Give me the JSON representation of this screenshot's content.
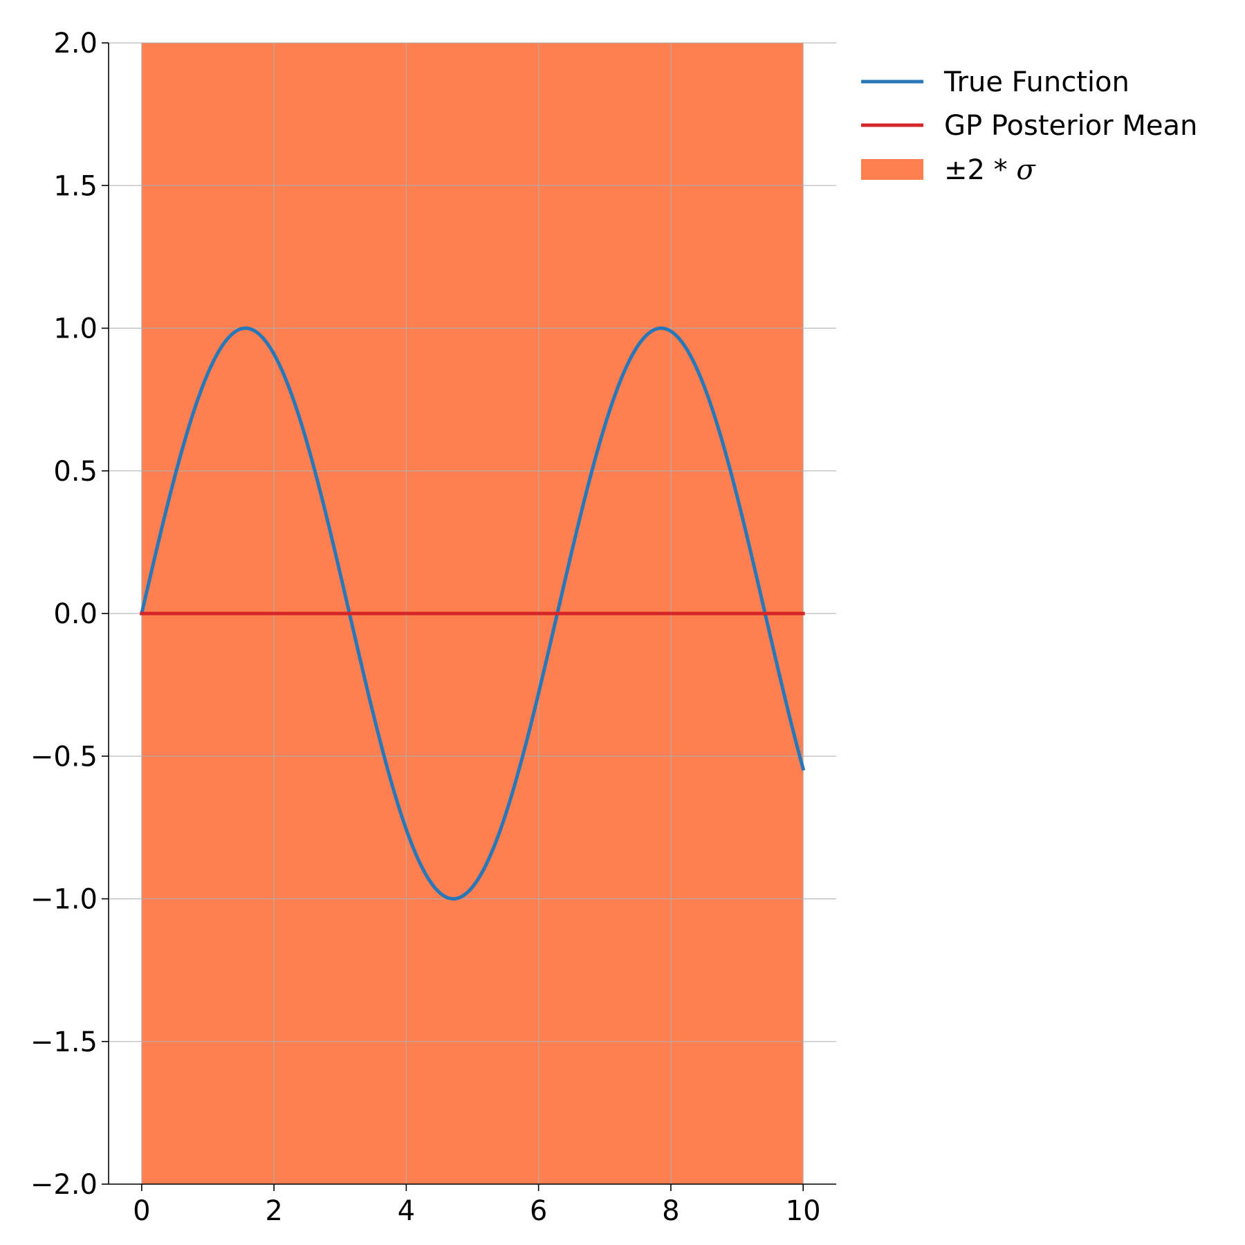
{
  "chart_data": {
    "type": "line",
    "xlim": [
      -0.5,
      10.5
    ],
    "ylim": [
      -2.0,
      2.0
    ],
    "xticks": [
      0,
      2,
      4,
      6,
      8,
      10
    ],
    "xtick_labels": [
      "0",
      "2",
      "4",
      "6",
      "8",
      "10"
    ],
    "yticks": [
      -2.0,
      -1.5,
      -1.0,
      -0.5,
      0.0,
      0.5,
      1.0,
      1.5,
      2.0
    ],
    "ytick_labels": [
      "−2.0",
      "−1.5",
      "−1.0",
      "−0.5",
      "0.0",
      "0.5",
      "1.0",
      "1.5",
      "2.0"
    ],
    "grid": true,
    "legend_position": "outside-top-right",
    "series": [
      {
        "name": "True Function",
        "color": "#2877b8",
        "kind": "line",
        "function": "sin(x)",
        "x_range": [
          0,
          10
        ]
      },
      {
        "name": "GP Posterior Mean",
        "color": "#d62728",
        "kind": "line",
        "x": [
          0,
          10
        ],
        "y": [
          0.0,
          0.0
        ]
      }
    ],
    "band": {
      "name": "±2 * σ",
      "label_prefix": "±2 * ",
      "label_symbol": "σ",
      "color": "#ff7f50",
      "x_range": [
        0,
        10
      ],
      "lower": -2.0,
      "upper": 2.0
    }
  }
}
